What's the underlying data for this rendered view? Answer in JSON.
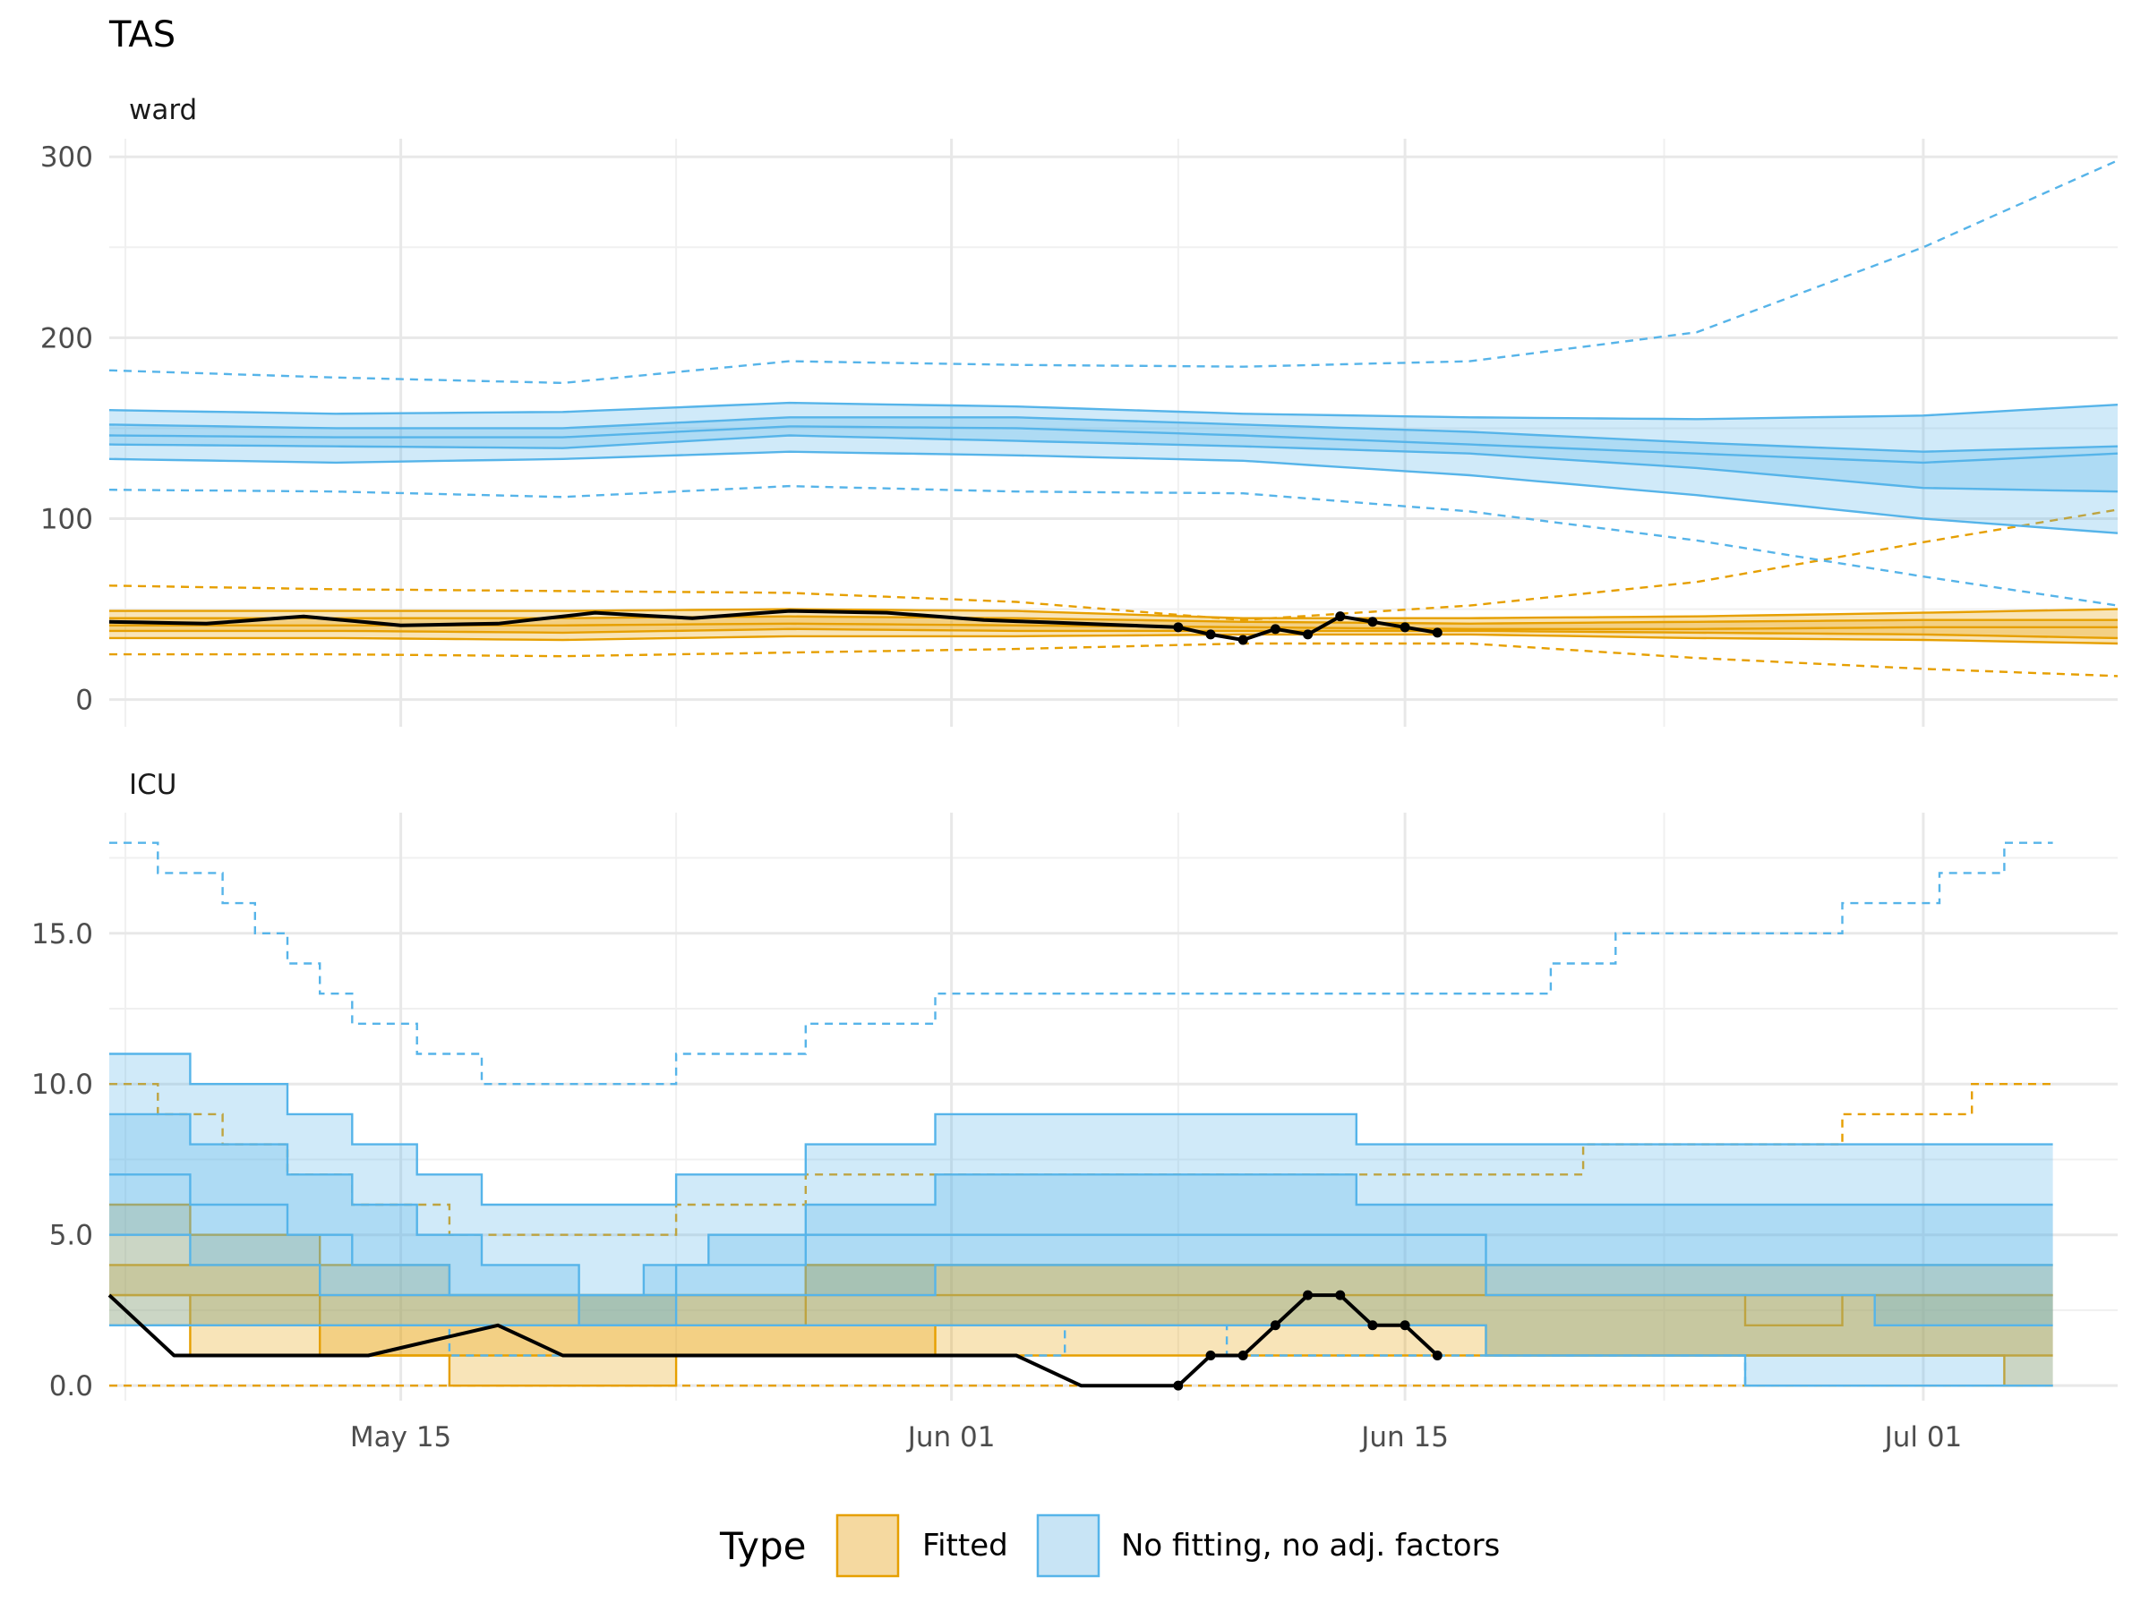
{
  "chart_data": {
    "type": "line",
    "title": "TAS",
    "x_tick_labels": [
      "May 15",
      "Jun 01",
      "Jun 15",
      "Jul 01"
    ],
    "x_ticks": [
      "2020-05-15",
      "2020-06-01",
      "2020-06-15",
      "2020-07-01"
    ],
    "x_range": [
      "2020-05-06",
      "2020-07-07"
    ],
    "grid": true,
    "legend": {
      "title": "Type",
      "position": "bottom",
      "entries": [
        {
          "label": "Fitted",
          "fill": "#F5D9A0",
          "stroke": "#E69F00"
        },
        {
          "label": "No fitting, no adj. factors",
          "fill": "#C8E4F5",
          "stroke": "#56B4E9"
        }
      ]
    },
    "colors": {
      "fitted": "#E69F00",
      "nofit": "#56B4E9",
      "observed": "#000000"
    },
    "panels": [
      {
        "strip": "ward",
        "ylim": [
          -15,
          310
        ],
        "y_ticks": [
          0,
          100,
          200,
          300
        ],
        "y_tick_labels": [
          "0",
          "100",
          "200",
          "300"
        ],
        "step": false,
        "series": [
          {
            "type": "Fitted",
            "x": [
              "2020-05-06",
              "2020-05-13",
              "2020-05-20",
              "2020-05-27",
              "2020-06-03",
              "2020-06-10",
              "2020-06-17",
              "2020-06-24",
              "2020-07-01",
              "2020-07-07"
            ],
            "outer_lo": [
              34,
              34,
              33,
              35,
              35,
              36,
              36,
              34,
              33,
              31
            ],
            "inner_lo": [
              38,
              38,
              37,
              39,
              38,
              38,
              38,
              37,
              36,
              34
            ],
            "median": [
              41,
              41,
              41,
              42,
              41,
              40,
              39,
              39,
              40,
              40
            ],
            "inner_hi": [
              45,
              45,
              45,
              46,
              45,
              43,
              42,
              43,
              44,
              44
            ],
            "outer_hi": [
              49,
              49,
              49,
              50,
              49,
              45,
              45,
              46,
              48,
              50
            ],
            "dash_lo": [
              25,
              25,
              24,
              26,
              28,
              31,
              31,
              23,
              17,
              13
            ],
            "dash_hi": [
              63,
              61,
              60,
              59,
              54,
              44,
              52,
              65,
              87,
              105
            ]
          },
          {
            "type": "No fitting, no adj. factors",
            "x": [
              "2020-05-06",
              "2020-05-13",
              "2020-05-20",
              "2020-05-27",
              "2020-06-03",
              "2020-06-10",
              "2020-06-17",
              "2020-06-24",
              "2020-07-01",
              "2020-07-07"
            ],
            "outer_lo": [
              133,
              131,
              133,
              137,
              135,
              132,
              124,
              113,
              100,
              92
            ],
            "inner_lo": [
              141,
              140,
              139,
              146,
              143,
              140,
              136,
              128,
              117,
              115
            ],
            "median": [
              146,
              145,
              145,
              151,
              150,
              146,
              141,
              136,
              131,
              136
            ],
            "inner_hi": [
              152,
              150,
              150,
              156,
              156,
              152,
              148,
              142,
              137,
              140
            ],
            "outer_hi": [
              160,
              158,
              159,
              164,
              162,
              158,
              156,
              155,
              157,
              163
            ],
            "dash_lo": [
              116,
              115,
              112,
              118,
              115,
              114,
              104,
              88,
              68,
              52
            ],
            "dash_hi": [
              182,
              178,
              175,
              187,
              185,
              184,
              187,
              203,
              250,
              298
            ]
          }
        ],
        "observed": {
          "x": [
            "2020-05-06",
            "2020-05-09",
            "2020-05-12",
            "2020-05-15",
            "2020-05-18",
            "2020-05-21",
            "2020-05-24",
            "2020-05-27",
            "2020-05-30",
            "2020-06-02",
            "2020-06-05",
            "2020-06-08",
            "2020-06-09",
            "2020-06-10",
            "2020-06-11",
            "2020-06-12",
            "2020-06-13",
            "2020-06-14",
            "2020-06-15",
            "2020-06-16"
          ],
          "y": [
            43,
            42,
            46,
            41,
            42,
            48,
            45,
            49,
            48,
            44,
            42,
            40,
            36,
            33,
            39,
            36,
            46,
            43,
            40,
            37
          ],
          "points_from": "2020-06-08"
        }
      },
      {
        "strip": "ICU",
        "ylim": [
          -0.5,
          19
        ],
        "y_ticks": [
          0,
          5,
          10,
          15
        ],
        "y_tick_labels": [
          "0.0",
          "5.0",
          "10.0",
          "15.0"
        ],
        "step": true,
        "series": [
          {
            "type": "Fitted",
            "x": [
              "2020-05-06",
              "2020-05-10",
              "2020-05-14",
              "2020-05-18",
              "2020-05-22",
              "2020-05-26",
              "2020-05-30",
              "2020-06-03",
              "2020-06-07",
              "2020-06-11",
              "2020-06-15",
              "2020-06-19",
              "2020-06-23",
              "2020-06-27",
              "2020-07-01",
              "2020-07-05"
            ],
            "outer_lo": [
              2,
              1,
              1,
              0,
              0,
              1,
              1,
              1,
              1,
              1,
              1,
              1,
              1,
              1,
              1,
              0
            ],
            "inner_lo": [
              3,
              2,
              1,
              1,
              1,
              1,
              1,
              2,
              2,
              2,
              2,
              1,
              1,
              1,
              1,
              1
            ],
            "median": [
              3,
              3,
              2,
              2,
              2,
              2,
              3,
              3,
              3,
              3,
              3,
              3,
              3,
              2,
              3,
              3
            ],
            "inner_hi": [
              4,
              4,
              3,
              3,
              3,
              3,
              4,
              4,
              4,
              4,
              4,
              3,
              3,
              3,
              3,
              3
            ],
            "outer_hi": [
              6,
              5,
              4,
              3,
              3,
              3,
              4,
              4,
              4,
              4,
              4,
              4,
              4,
              4,
              4,
              4
            ],
            "dash_lo": [
              0,
              0,
              0,
              0,
              0,
              0,
              0,
              0,
              0,
              0,
              0,
              0,
              0,
              0,
              0,
              0
            ],
            "dash_hi": [
              10,
              8,
              6,
              5,
              5,
              6,
              7,
              7,
              7,
              7,
              7,
              7,
              8,
              8,
              9,
              10
            ]
          },
          {
            "type": "No fitting, no adj. factors",
            "x": [
              "2020-05-06",
              "2020-05-10",
              "2020-05-14",
              "2020-05-18",
              "2020-05-22",
              "2020-05-26",
              "2020-05-30",
              "2020-06-03",
              "2020-06-07",
              "2020-06-11",
              "2020-06-15",
              "2020-06-19",
              "2020-06-23",
              "2020-06-27",
              "2020-07-01",
              "2020-07-05"
            ],
            "outer_lo": [
              2,
              2,
              2,
              2,
              2,
              2,
              2,
              2,
              2,
              2,
              2,
              1,
              1,
              0,
              0,
              0
            ],
            "inner_lo": [
              5,
              4,
              3,
              3,
              2,
              3,
              3,
              4,
              4,
              4,
              4,
              3,
              3,
              3,
              2,
              2
            ],
            "median": [
              7,
              6,
              4,
              3,
              3,
              4,
              5,
              5,
              5,
              5,
              5,
              4,
              4,
              4,
              4,
              4
            ],
            "inner_hi": [
              9,
              8,
              6,
              4,
              3,
              5,
              6,
              7,
              7,
              7,
              6,
              6,
              6,
              6,
              6,
              6
            ],
            "outer_hi": [
              11,
              10,
              8,
              6,
              6,
              7,
              8,
              9,
              9,
              9,
              8,
              8,
              8,
              8,
              8,
              8
            ],
            "dash_lo": [
              2,
              2,
              2,
              1,
              1,
              1,
              1,
              1,
              2,
              1,
              1,
              1,
              1,
              0,
              0,
              0
            ],
            "dash_hi": [
              18,
              16,
              12,
              10,
              10,
              11,
              12,
              13,
              13,
              13,
              13,
              13,
              15,
              15,
              16,
              18
            ]
          }
        ],
        "observed": {
          "x": [
            "2020-05-06",
            "2020-05-08",
            "2020-05-10",
            "2020-05-14",
            "2020-05-18",
            "2020-05-20",
            "2020-05-22",
            "2020-05-24",
            "2020-05-26",
            "2020-05-28",
            "2020-05-30",
            "2020-06-01",
            "2020-06-03",
            "2020-06-05",
            "2020-06-07",
            "2020-06-08",
            "2020-06-09",
            "2020-06-10",
            "2020-06-11",
            "2020-06-12",
            "2020-06-13",
            "2020-06-14",
            "2020-06-15",
            "2020-06-16"
          ],
          "y": [
            3,
            1,
            1,
            1,
            2,
            1,
            1,
            1,
            1,
            1,
            1,
            1,
            1,
            0,
            0,
            0,
            1,
            1,
            2,
            3,
            3,
            2,
            2,
            1
          ],
          "points_from": "2020-06-08"
        }
      }
    ]
  }
}
